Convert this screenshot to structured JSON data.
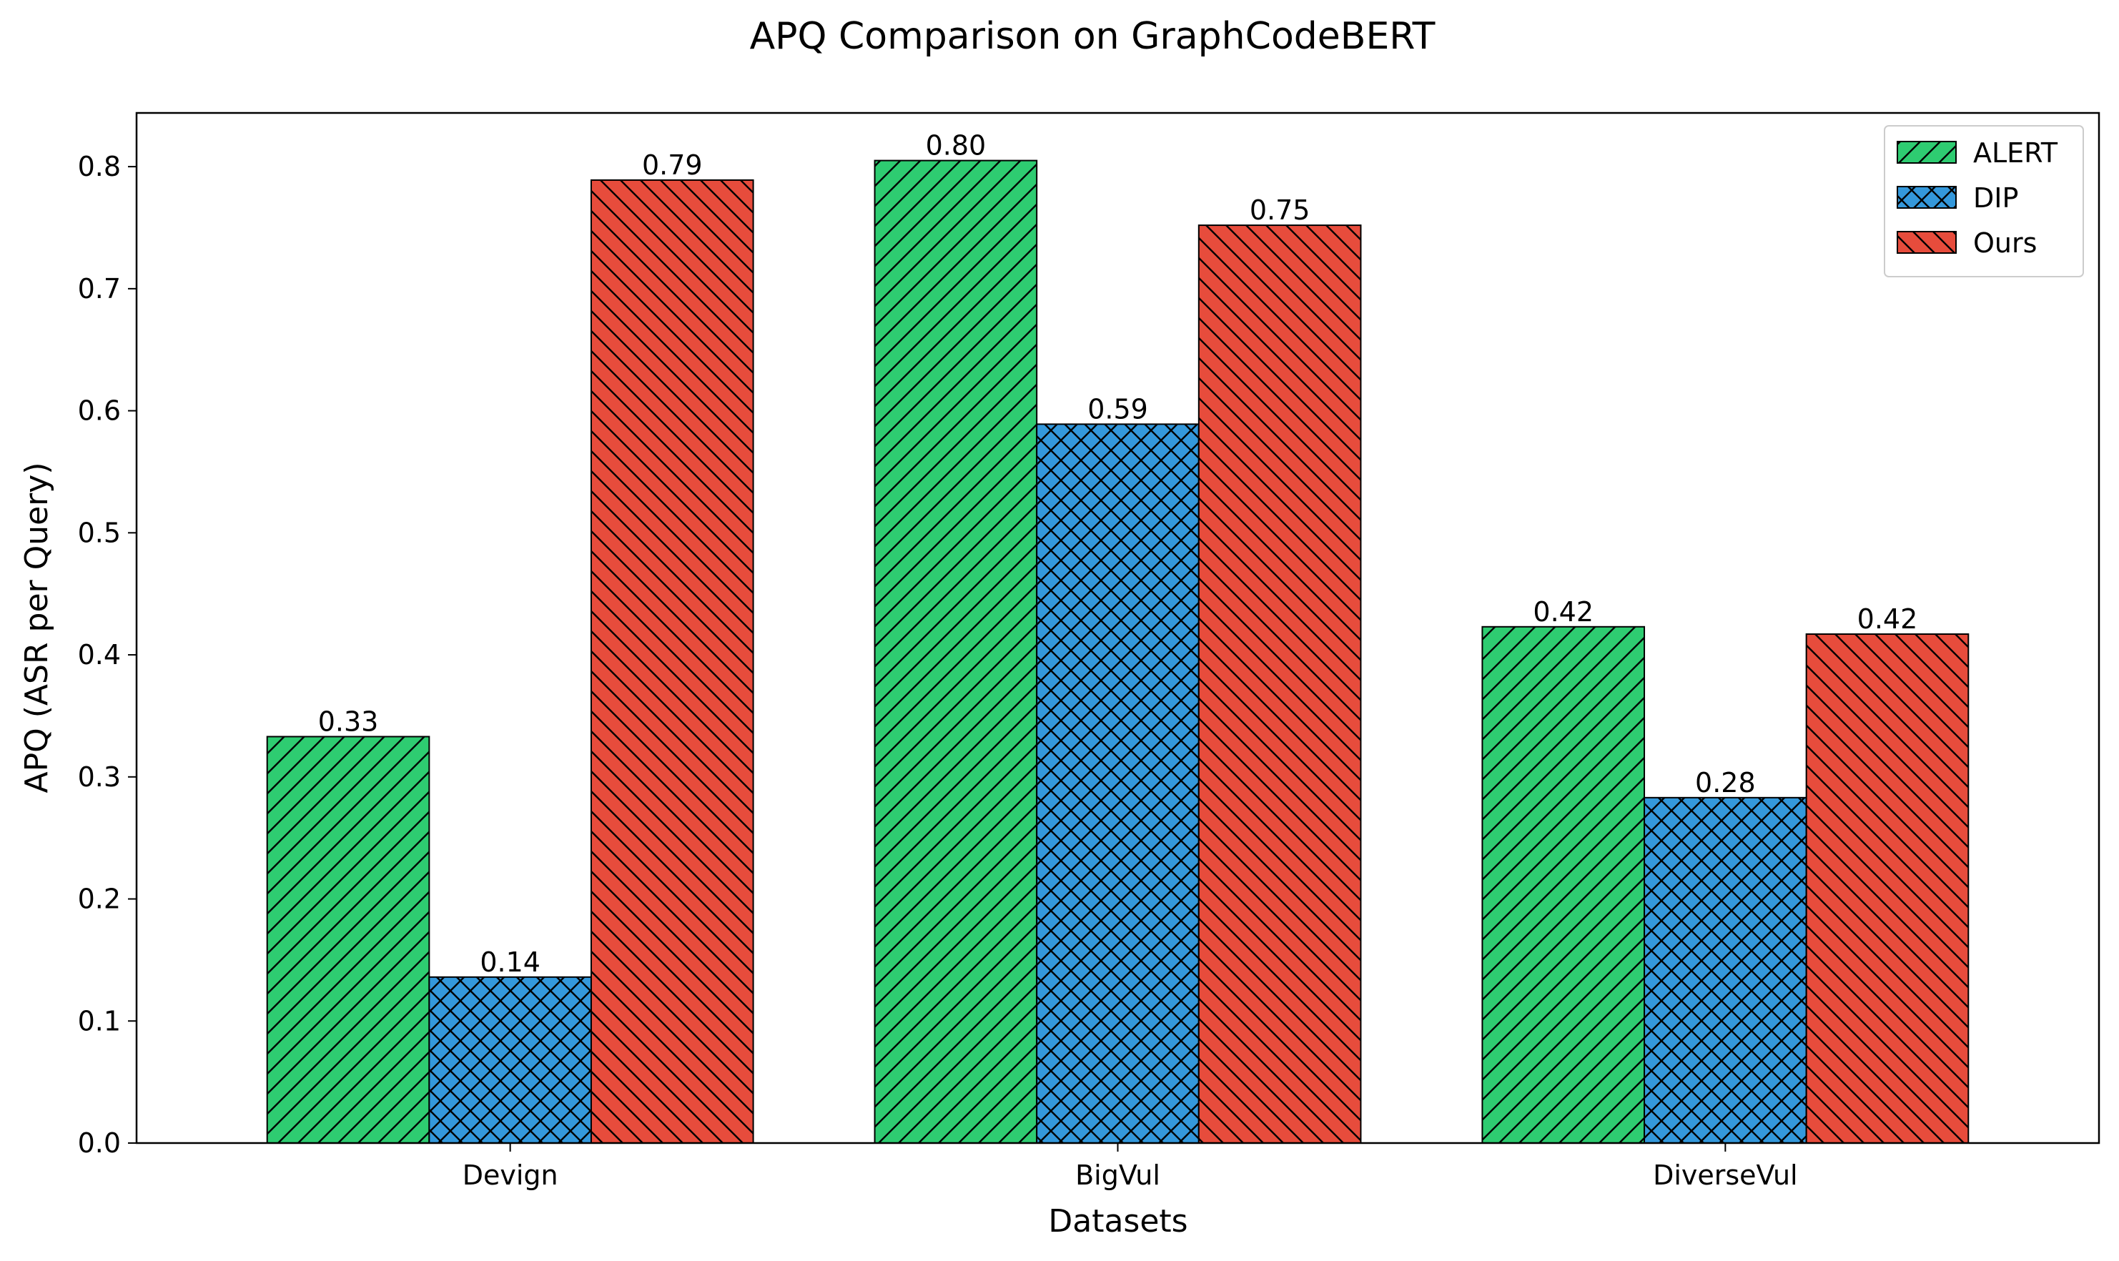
{
  "chart_data": {
    "type": "bar",
    "title": "APQ Comparison on GraphCodeBERT",
    "xlabel": "Datasets",
    "ylabel": "APQ (ASR per Query)",
    "categories": [
      "Devign",
      "BigVul",
      "DiverseVul"
    ],
    "ylim": [
      0,
      0.844
    ],
    "yticks": [
      "0.0",
      "0.1",
      "0.2",
      "0.3",
      "0.4",
      "0.5",
      "0.6",
      "0.7",
      "0.8"
    ],
    "grid": false,
    "legend_position": "top-right",
    "series": [
      {
        "name": "ALERT",
        "values": [
          0.333,
          0.805,
          0.423
        ],
        "labels": [
          "0.33",
          "0.80",
          "0.42"
        ],
        "color": "#2ecc71",
        "hatch": "diagonal-forward"
      },
      {
        "name": "DIP",
        "values": [
          0.136,
          0.589,
          0.283
        ],
        "labels": [
          "0.14",
          "0.59",
          "0.28"
        ],
        "color": "#3498db",
        "hatch": "cross"
      },
      {
        "name": "Ours",
        "values": [
          0.789,
          0.752,
          0.417
        ],
        "labels": [
          "0.79",
          "0.75",
          "0.42"
        ],
        "color": "#e74c3c",
        "hatch": "diagonal-back"
      }
    ]
  }
}
